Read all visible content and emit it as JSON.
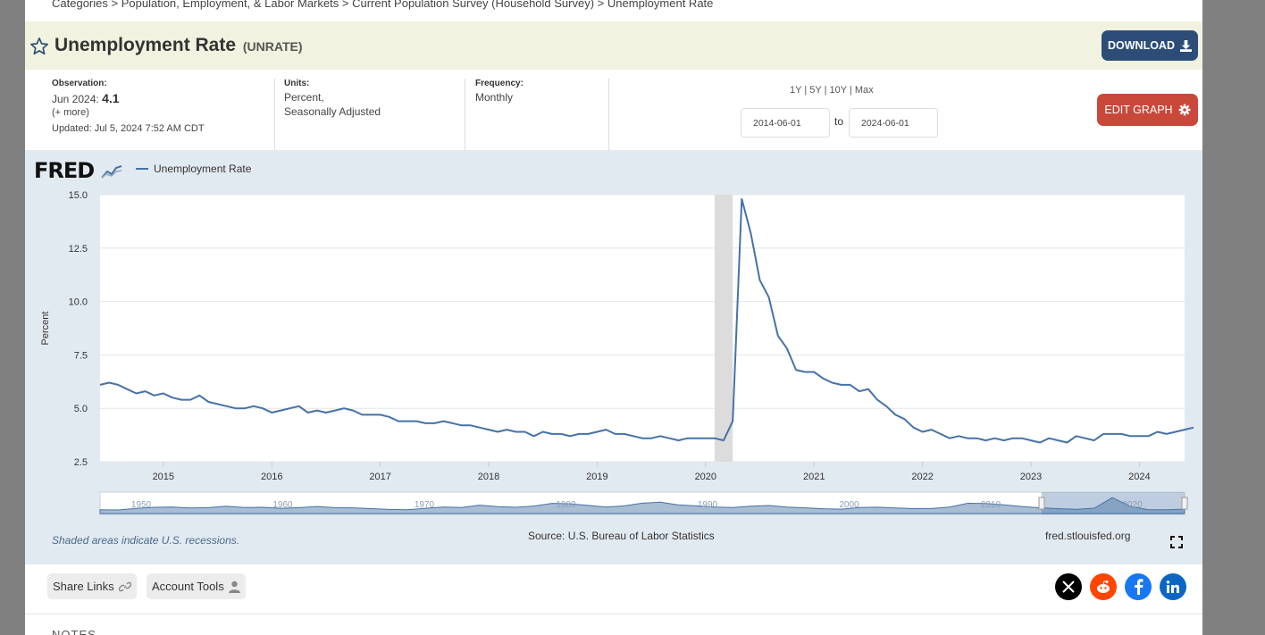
{
  "breadcrumb": {
    "items": [
      "Categories",
      "Population, Employment, & Labor Markets",
      "Current Population Survey (Household Survey)",
      "Unemployment Rate"
    ],
    "separator": ">"
  },
  "header": {
    "title": "Unemployment Rate",
    "series_id": "(UNRATE)",
    "download_label": "DOWNLOAD"
  },
  "meta": {
    "observation_label": "Observation:",
    "observation_period": "Jun 2024:",
    "observation_value": "4.1",
    "more_link": "(+ more)",
    "updated": "Updated: Jul 5, 2024 7:52 AM CDT",
    "units_label": "Units:",
    "units_line1": "Percent,",
    "units_line2": "Seasonally Adjusted",
    "frequency_label": "Frequency:",
    "frequency_value": "Monthly"
  },
  "controls": {
    "ranges": [
      "1Y",
      "5Y",
      "10Y",
      "Max"
    ],
    "start_date": "2014-06-01",
    "to_label": "to",
    "end_date": "2024-06-01",
    "edit_graph_label": "EDIT GRAPH"
  },
  "chart": {
    "logo": "FRED",
    "legend": "Unemployment Rate",
    "shaded_note": "Shaded areas indicate U.S. recessions.",
    "source": "Source: U.S. Bureau of Labor Statistics",
    "url": "fred.stlouisfed.org"
  },
  "chart_data": {
    "type": "line",
    "ylabel": "Percent",
    "ylim": [
      2.5,
      15.0
    ],
    "yticks": [
      "15.0",
      "12.5",
      "10.0",
      "7.5",
      "5.0",
      "2.5"
    ],
    "xticks": [
      "2015",
      "2016",
      "2017",
      "2018",
      "2019",
      "2020",
      "2021",
      "2022",
      "2023",
      "2024"
    ],
    "navigator_ticks": [
      "1950",
      "1960",
      "1970",
      "1980",
      "1990",
      "2000",
      "2010",
      "2020"
    ],
    "recession": [
      "2020-02",
      "2020-04"
    ],
    "series": [
      {
        "name": "Unemployment Rate",
        "color": "#4572a7",
        "start": "2014-06",
        "values": [
          6.1,
          6.2,
          6.1,
          5.9,
          5.7,
          5.8,
          5.6,
          5.7,
          5.5,
          5.4,
          5.4,
          5.6,
          5.3,
          5.2,
          5.1,
          5.0,
          5.0,
          5.1,
          5.0,
          4.8,
          4.9,
          5.0,
          5.1,
          4.8,
          4.9,
          4.8,
          4.9,
          5.0,
          4.9,
          4.7,
          4.7,
          4.7,
          4.6,
          4.4,
          4.4,
          4.4,
          4.3,
          4.3,
          4.4,
          4.3,
          4.2,
          4.2,
          4.1,
          4.0,
          3.9,
          4.0,
          3.9,
          3.9,
          3.7,
          3.9,
          3.8,
          3.8,
          3.7,
          3.8,
          3.8,
          3.9,
          4.0,
          3.8,
          3.8,
          3.7,
          3.6,
          3.6,
          3.7,
          3.6,
          3.5,
          3.6,
          3.6,
          3.6,
          3.6,
          3.5,
          4.4,
          14.8,
          13.2,
          11.0,
          10.2,
          8.4,
          7.8,
          6.8,
          6.7,
          6.7,
          6.4,
          6.2,
          6.1,
          6.1,
          5.8,
          5.9,
          5.4,
          5.1,
          4.7,
          4.5,
          4.1,
          3.9,
          4.0,
          3.8,
          3.6,
          3.7,
          3.6,
          3.6,
          3.5,
          3.6,
          3.5,
          3.6,
          3.6,
          3.5,
          3.4,
          3.6,
          3.5,
          3.4,
          3.7,
          3.6,
          3.5,
          3.8,
          3.8,
          3.8,
          3.7,
          3.7,
          3.7,
          3.9,
          3.8,
          3.9,
          4.0,
          4.1
        ]
      }
    ]
  },
  "footer": {
    "share_links": "Share Links",
    "account_tools": "Account Tools",
    "notes": "NOTES"
  },
  "colors": {
    "line": "#4572a7",
    "download_bg": "#2d4d78",
    "edit_bg": "#c9483a",
    "title_band": "#f1f2df",
    "chart_band": "#e2eaf1"
  }
}
